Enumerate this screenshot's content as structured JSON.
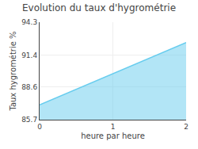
{
  "chart_data": {
    "type": "area",
    "title": "Evolution du taux d'hygrométrie",
    "xlabel": "heure par heure",
    "ylabel": "Taux hygrométrie %",
    "x": [
      0,
      2
    ],
    "values": [
      87.0,
      92.5
    ],
    "color": "#66ccee",
    "xlim": [
      0,
      2
    ],
    "ylim": [
      85.7,
      94.3
    ],
    "xticks": [
      0,
      1,
      2
    ],
    "yticks": [
      85.7,
      88.6,
      91.4,
      94.3
    ],
    "grid": true
  }
}
